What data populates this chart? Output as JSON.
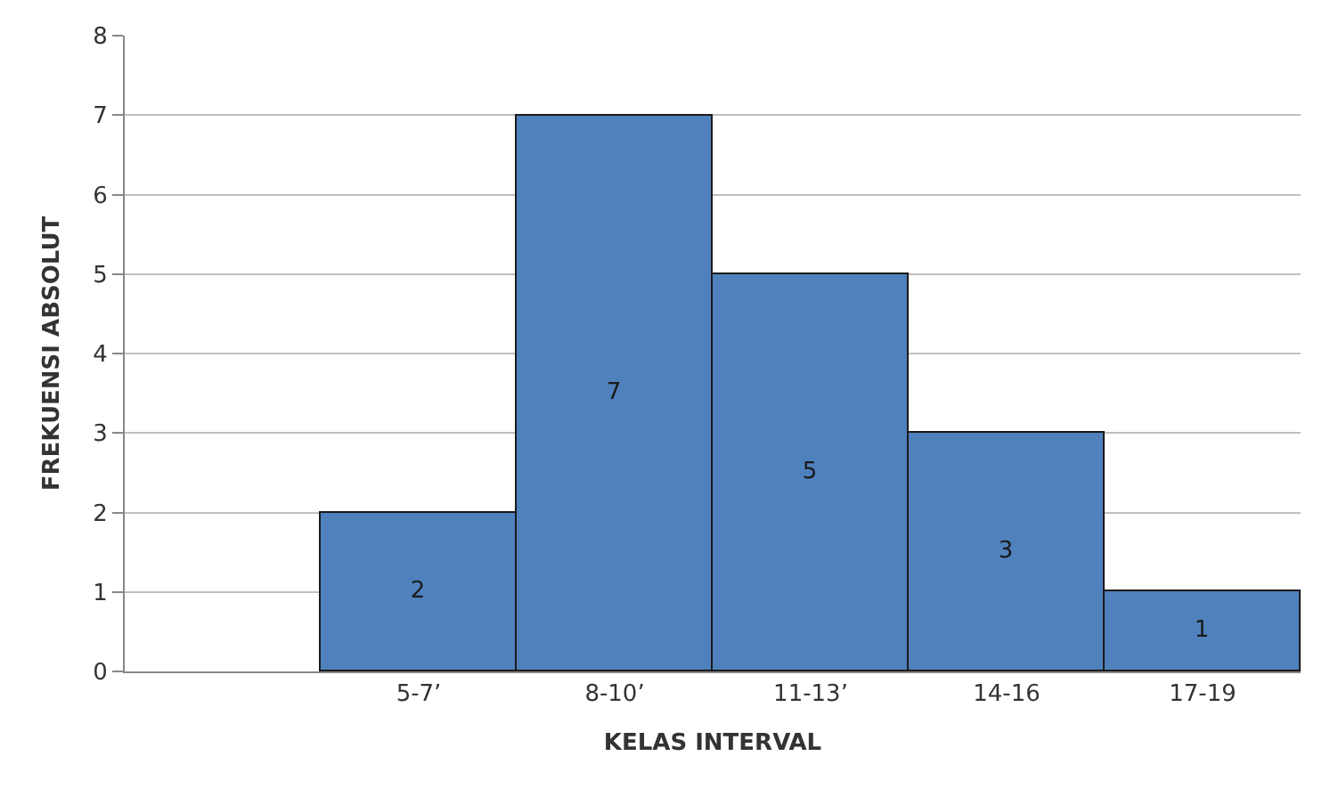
{
  "chart_data": {
    "type": "bar",
    "xlabel": "KELAS INTERVAL",
    "ylabel": "FREKUENSI ABSOLUT",
    "categories": [
      null,
      "5-7’",
      "8-10’",
      "11-13’",
      "14-16",
      "17-19"
    ],
    "values": [
      null,
      2,
      7,
      5,
      3,
      1
    ],
    "color": "#4f81bd",
    "ylim": [
      0,
      8
    ],
    "yticks": [
      0,
      1,
      2,
      3,
      4,
      5,
      6,
      7,
      8
    ],
    "grid": "y",
    "data_labels": true
  }
}
